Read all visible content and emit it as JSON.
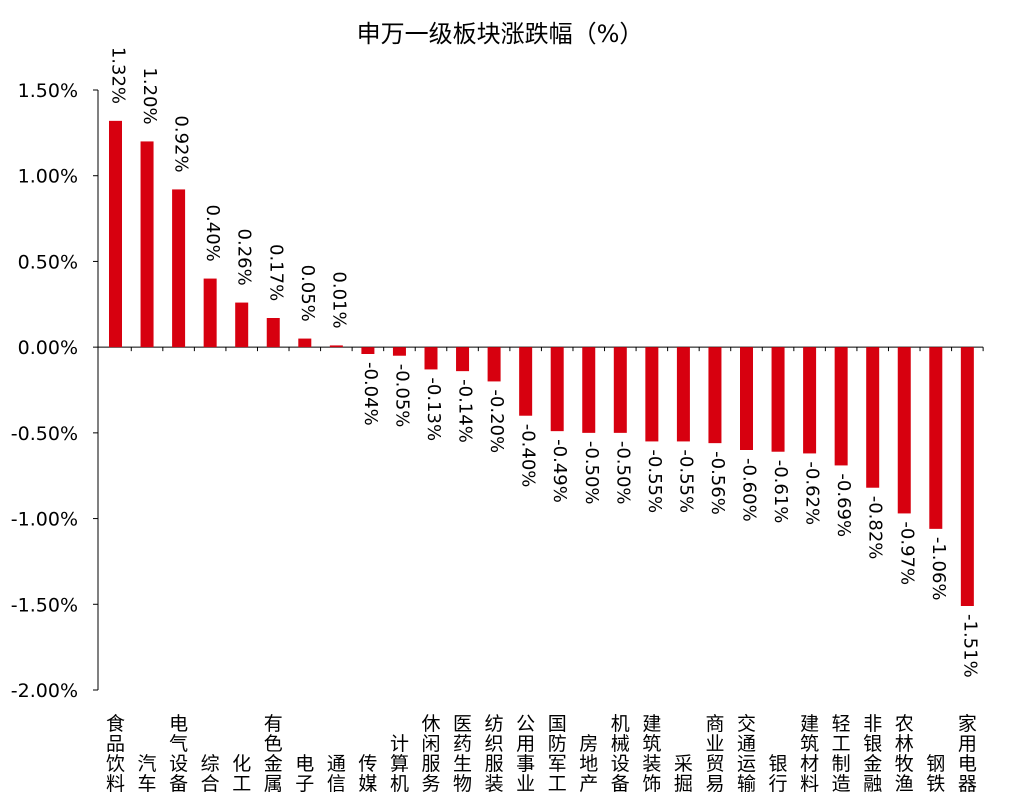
{
  "chart_data": {
    "type": "bar",
    "title": "申万一级板块涨跌幅（%）",
    "xlabel": "",
    "ylabel": "",
    "ylim": [
      -2.0,
      1.5
    ],
    "yticks": [
      "1.50%",
      "1.00%",
      "0.50%",
      "0.00%",
      "-0.50%",
      "-1.00%",
      "-1.50%",
      "-2.00%"
    ],
    "ytick_values": [
      1.5,
      1.0,
      0.5,
      0.0,
      -0.5,
      -1.0,
      -1.5,
      -2.0
    ],
    "grid": false,
    "legend": "none",
    "bar_color": "#D7000F",
    "categories": [
      "食品饮料",
      "汽车",
      "电气设备",
      "综合",
      "化工",
      "有色金属",
      "电子",
      "通信",
      "传媒",
      "计算机",
      "休闲服务",
      "医药生物",
      "纺织服装",
      "公用事业",
      "国防军工",
      "房地产",
      "机械设备",
      "建筑装饰",
      "采掘",
      "商业贸易",
      "交通运输",
      "银行",
      "建筑材料",
      "轻工制造",
      "非银金融",
      "农林牧渔",
      "钢铁",
      "家用电器"
    ],
    "values": [
      1.32,
      1.2,
      0.92,
      0.4,
      0.26,
      0.17,
      0.05,
      0.01,
      -0.04,
      -0.05,
      -0.13,
      -0.14,
      -0.2,
      -0.4,
      -0.49,
      -0.5,
      -0.5,
      -0.55,
      -0.55,
      -0.56,
      -0.6,
      -0.61,
      -0.62,
      -0.69,
      -0.82,
      -0.97,
      -1.06,
      -1.51
    ],
    "data_labels": [
      "1.32%",
      "1.20%",
      "0.92%",
      "0.40%",
      "0.26%",
      "0.17%",
      "0.05%",
      "0.01%",
      "-0.04%",
      "-0.05%",
      "-0.13%",
      "-0.14%",
      "-0.20%",
      "-0.40%",
      "-0.49%",
      "-0.50%",
      "-0.50%",
      "-0.55%",
      "-0.55%",
      "-0.56%",
      "-0.60%",
      "-0.61%",
      "-0.62%",
      "-0.69%",
      "-0.82%",
      "-0.97%",
      "-1.06%",
      "-1.51%"
    ]
  }
}
